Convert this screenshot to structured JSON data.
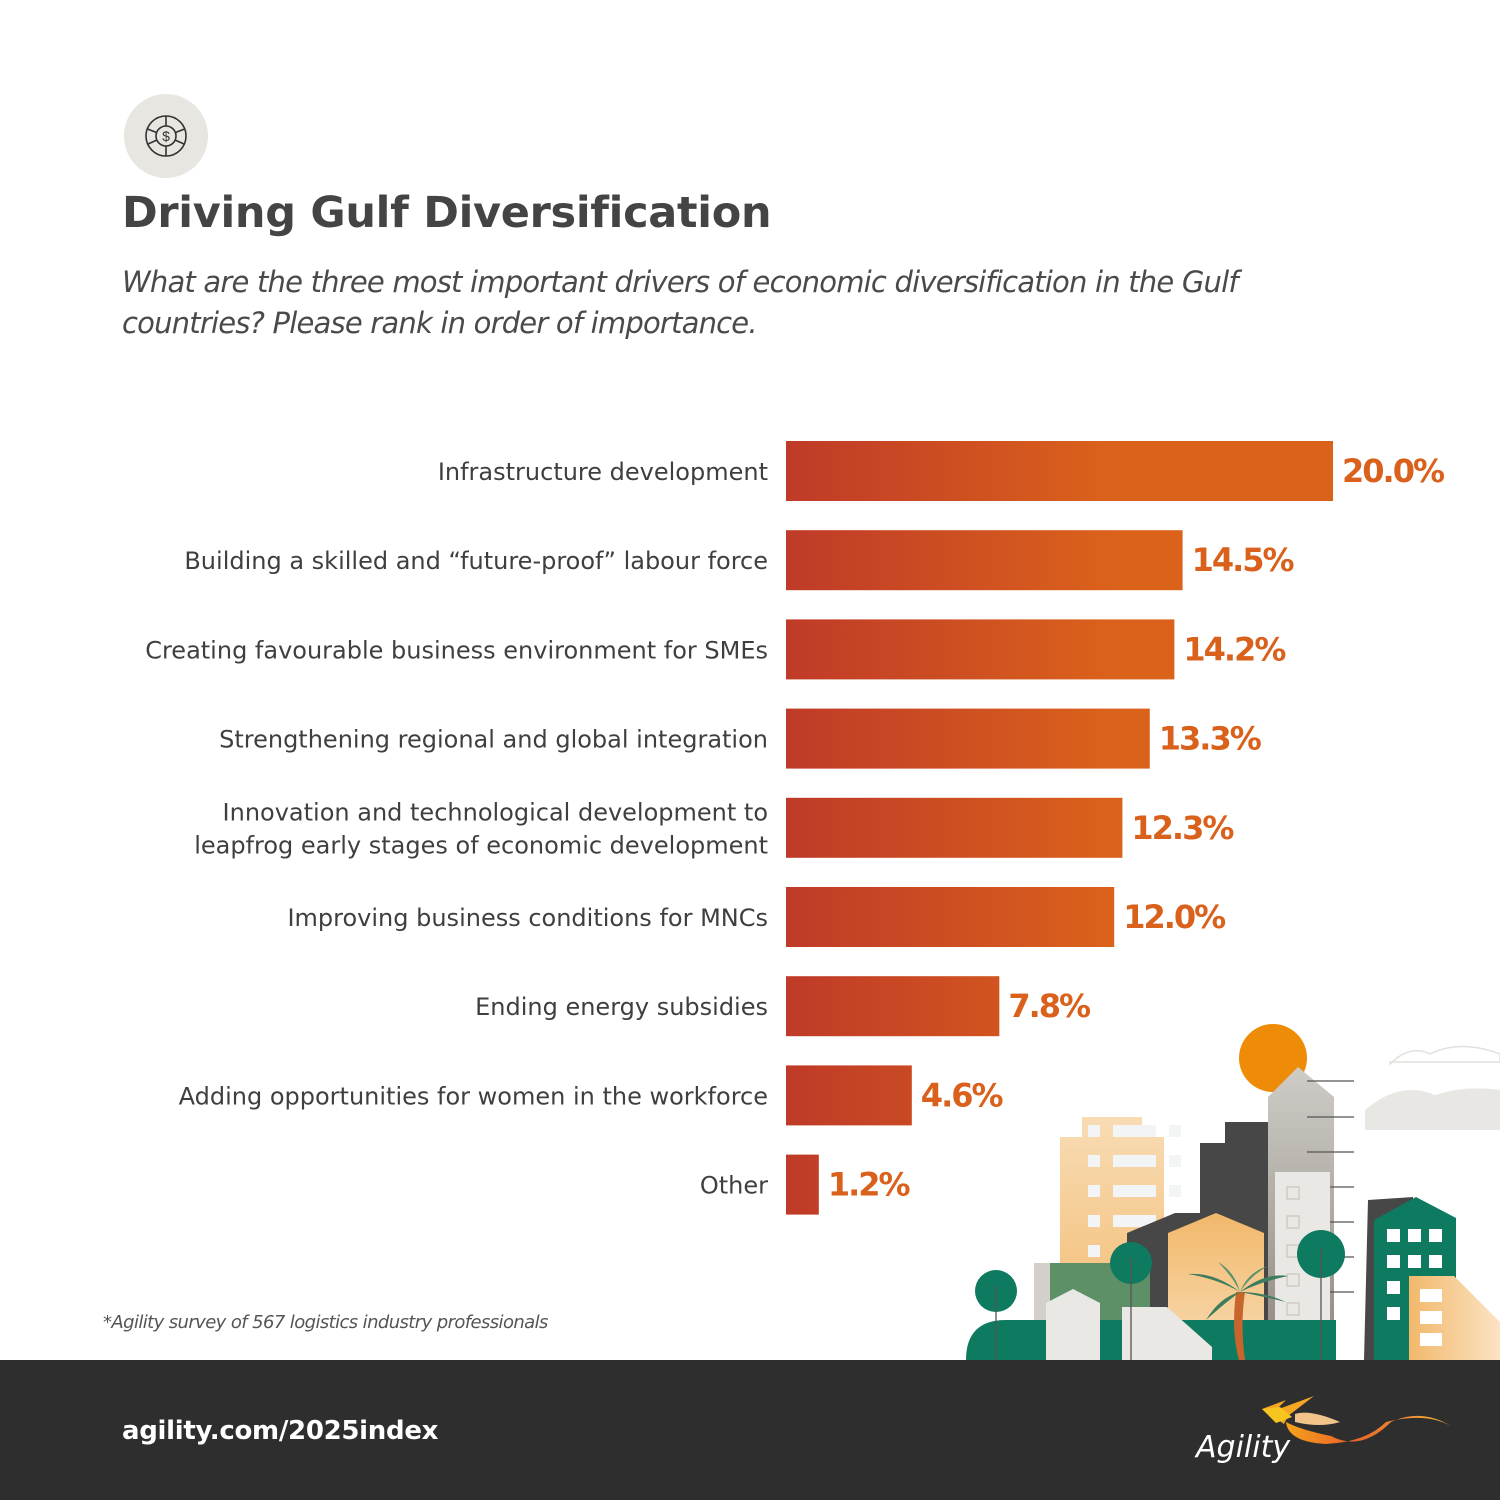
{
  "header": {
    "icon": "dollar-coin-icon",
    "title": "Driving Gulf Diversification",
    "subtitle": "What are the three most important drivers of economic diversification in the Gulf countries? Please rank in order of importance."
  },
  "colors": {
    "bar_start": "#bf3a28",
    "bar_end": "#db621b",
    "value_label": "#d9611c",
    "footer_bg": "#2e2e2e"
  },
  "chart_data": {
    "type": "bar",
    "orientation": "horizontal",
    "title": "Driving Gulf Diversification",
    "xlabel": "",
    "ylabel": "",
    "xlim": [
      0,
      20
    ],
    "grid": false,
    "categories": [
      [
        "Infrastructure development"
      ],
      [
        "Building a skilled and “future-proof” labour force"
      ],
      [
        "Creating favourable business environment for SMEs"
      ],
      [
        "Strengthening regional and global integration"
      ],
      [
        "Innovation and technological development to",
        "leapfrog early stages of economic development"
      ],
      [
        "Improving business conditions for MNCs"
      ],
      [
        "Ending energy subsidies"
      ],
      [
        "Adding opportunities for women in the workforce"
      ],
      [
        "Other"
      ]
    ],
    "values": [
      20.0,
      14.5,
      14.2,
      13.3,
      12.3,
      12.0,
      7.8,
      4.6,
      1.2
    ],
    "value_labels": [
      "20.0%",
      "14.5%",
      "14.2%",
      "13.3%",
      "12.3%",
      "12.0%",
      "7.8%",
      "4.6%",
      "1.2%"
    ],
    "unit": "%"
  },
  "footnote": "*Agility survey of 567 logistics industry professionals",
  "footer": {
    "url": "agility.com/2025index",
    "logo_text": "Agility"
  }
}
